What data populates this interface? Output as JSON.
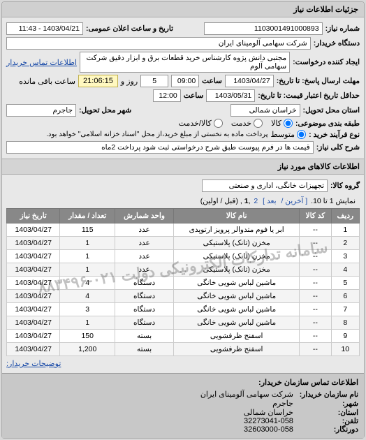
{
  "header": {
    "title": "جزئیات اطلاعات نیاز"
  },
  "fields": {
    "need_number_label": "شماره نیاز:",
    "need_number": "1103001491000893",
    "announce_label": "تاریخ و ساعت اعلان عمومی:",
    "announce_value": "1403/04/21 - 11:43",
    "buyer_org_label": "دستگاه خریدار:",
    "buyer_org": "شرکت سهامی آلومینای ایران",
    "requester_label": "ایجاد کننده درخواست:",
    "requester": "مجتبی دانش پژوه کارشناس خرید قطعات برق و ابزار دقیق شرکت سهامی آلوم",
    "contact_link": "اطلاعات تماس خریدار",
    "deadline_label": "مهلت ارسال پاسخ: تا تاریخ:",
    "deadline_date": "1403/04/27",
    "hour_label": "ساعت",
    "deadline_hour": "09:00",
    "remain_days": "5",
    "day_and": "روز و",
    "remain_time": "21:06:15",
    "remained_label": "ساعت باقی مانده",
    "quote_valid_label": "حداقل تاریخ اعتبار قیمت: تا تاریخ:",
    "quote_valid_date": "1403/05/31",
    "quote_valid_hour": "12:00",
    "province_label": "استان محل تحویل:",
    "province": "خراسان شمالی",
    "city_label": "شهر محل تحویل:",
    "city": "جاجرم",
    "packing_label": "طبقه بندی موضوعی:",
    "packing_options": {
      "all": "کالا",
      "service": "خدمت",
      "both": "کالا/خدمت"
    },
    "buy_process_label": "نوع فرآیند خرید :",
    "buy_process_options": {
      "medium": "متوسط"
    },
    "buy_process_note": "پرداخت ماده به نخستی از مبلغ خرید،از محل \"اسناد خزانه اسلامی\" خواهد بود.",
    "need_desc_label": "شرح کلی نیاز:",
    "need_desc": "قیمت ها در فرم پیوست طبق شرح درخواستی ثبت شود پرداخت 2ماه"
  },
  "goods_section": {
    "title": "اطلاعات کالاهای مورد نیاز",
    "group_label": "گروه کالا:",
    "group_value": "تجهیزات خانگی، اداری و صنعتی"
  },
  "pager": {
    "text_prefix": "نمایش 1 تا 10.",
    "last": "[ آخرین /",
    "next": "بعد ]",
    "p1": "1",
    "p2": "2",
    "suffix": ", (قبل / اولین)"
  },
  "table": {
    "columns": [
      "ردیف",
      "کد کالا",
      "نام کالا",
      "واحد شمارش",
      "تعداد / مقدار",
      "تاریخ نیاز"
    ],
    "rows": [
      [
        "1",
        "--",
        "ابر یا فوم متدوالر پرویز ارتوپدی",
        "عدد",
        "115",
        "1403/04/27"
      ],
      [
        "2",
        "--",
        "مخزن (تانک) پلاستیکی",
        "عدد",
        "1",
        "1403/04/27"
      ],
      [
        "3",
        "--",
        "مخزن (تانک) پلاستیکی",
        "عدد",
        "1",
        "1403/04/27"
      ],
      [
        "4",
        "--",
        "مخزن (تانک) پلاستیکی",
        "عدد",
        "1",
        "1403/04/27"
      ],
      [
        "5",
        "--",
        "ماشین لباس شویی خانگی",
        "دستگاه",
        "4",
        "1403/04/27"
      ],
      [
        "6",
        "--",
        "ماشین لباس شویی خانگی",
        "دستگاه",
        "4",
        "1403/04/27"
      ],
      [
        "7",
        "--",
        "ماشین لباس شویی خانگی",
        "دستگاه",
        "3",
        "1403/04/27"
      ],
      [
        "8",
        "--",
        "ماشین لباس شویی خانگی",
        "دستگاه",
        "1",
        "1403/04/27"
      ],
      [
        "9",
        "--",
        "اسفنج ظرفشویی",
        "بسته",
        "150",
        "1403/04/27"
      ],
      [
        "10",
        "--",
        "اسفنج ظرفشویی",
        "بسته",
        "1,200",
        "1403/04/27"
      ]
    ]
  },
  "watermark": "سامانه تدارکات الکترونیکی دولت ۰۲۱-۸۸۳۴۹۶",
  "buyer_contact_link": "توضیحات خریدار:",
  "contact": {
    "title": "اطلاعات تماس سازمان خریدار:",
    "org_label": "نام سازمان خریدار:",
    "org": "شرکت سهامی آلومینای ایران",
    "city_label": "شهر:",
    "city": "جاجرم",
    "province_label": "استان:",
    "province": "خراسان شمالی",
    "phone_label": "تلفن:",
    "phone": "32273041-058",
    "fax_label": "دورنگار:",
    "fax": "32603000-058"
  }
}
